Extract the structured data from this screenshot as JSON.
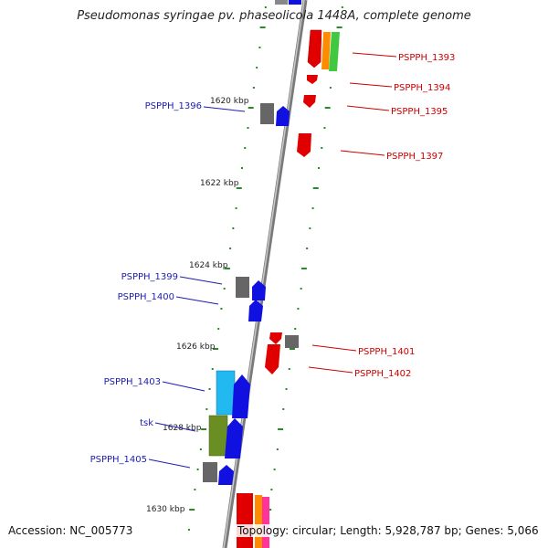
{
  "title": "Pseudomonas syringae pv. phaseolicola 1448A, complete genome",
  "accession": "Accession: NC_005773",
  "summary": "Topology: circular; Length: 5,928,787 bp; Genes: 5,066",
  "colors": {
    "backbone": "#8c8c8c",
    "forward_label": "#1c1cb4",
    "reverse_label": "#cc0000",
    "tick": "#2a8a2a",
    "ruler_text": "#222222"
  },
  "ruler": [
    {
      "label": "1620 kbp"
    },
    {
      "label": "1622 kbp"
    },
    {
      "label": "1624 kbp"
    },
    {
      "label": "1626 kbp"
    },
    {
      "label": "1628 kbp"
    },
    {
      "label": "1630 kbp"
    }
  ],
  "gene_labels": [
    {
      "name": "PSPPH_1393",
      "strand": "reverse"
    },
    {
      "name": "PSPPH_1394",
      "strand": "reverse"
    },
    {
      "name": "PSPPH_1395",
      "strand": "reverse"
    },
    {
      "name": "PSPPH_1396",
      "strand": "forward"
    },
    {
      "name": "PSPPH_1397",
      "strand": "reverse"
    },
    {
      "name": "PSPPH_1399",
      "strand": "forward"
    },
    {
      "name": "PSPPH_1400",
      "strand": "forward"
    },
    {
      "name": "PSPPH_1401",
      "strand": "reverse"
    },
    {
      "name": "PSPPH_1402",
      "strand": "reverse"
    },
    {
      "name": "PSPPH_1403",
      "strand": "forward"
    },
    {
      "name": "tsk",
      "strand": "forward"
    },
    {
      "name": "PSPPH_1405",
      "strand": "forward"
    }
  ]
}
